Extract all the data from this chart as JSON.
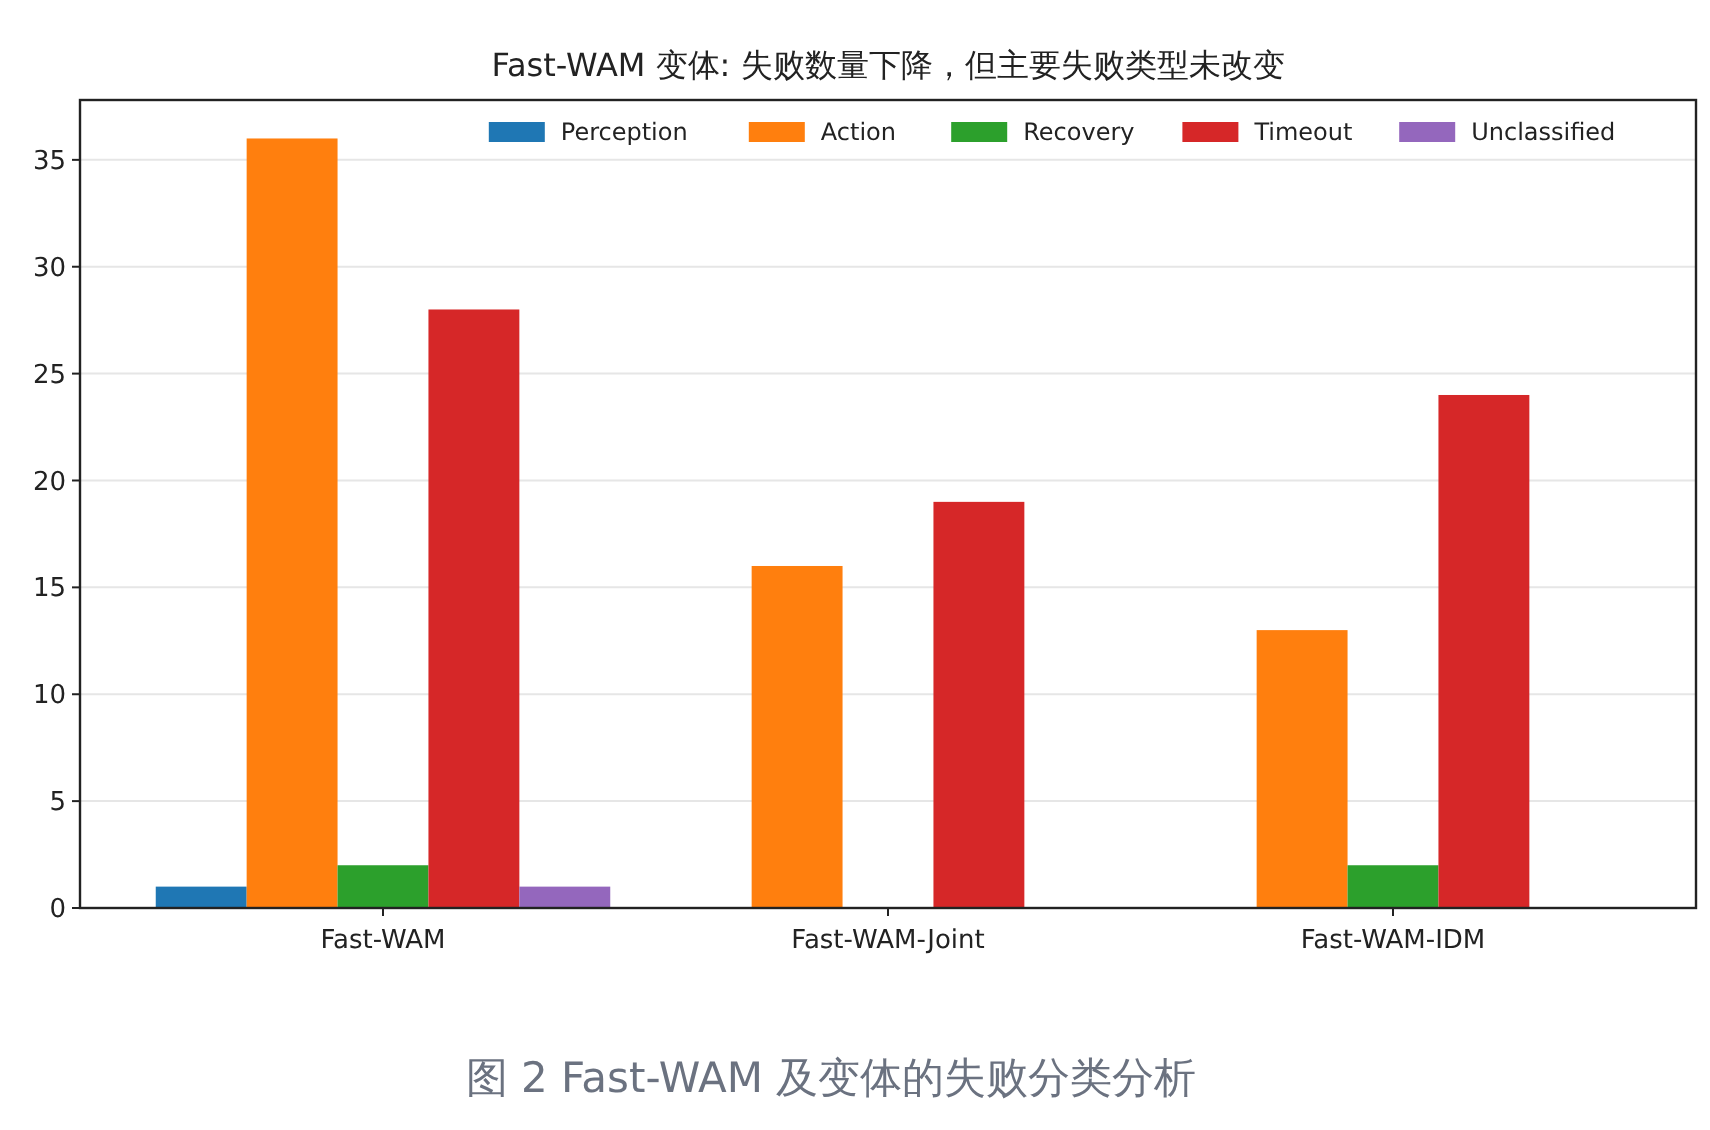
{
  "chart_data": {
    "type": "bar",
    "title": "Fast-WAM 变体: 失败数量下降，但主要失败类型未改变",
    "categories": [
      "Fast-WAM",
      "Fast-WAM-Joint",
      "Fast-WAM-IDM"
    ],
    "series": [
      {
        "name": "Perception",
        "color": "#1f77b4",
        "values": [
          1,
          0,
          0
        ]
      },
      {
        "name": "Action",
        "color": "#ff7f0e",
        "values": [
          36,
          16,
          13
        ]
      },
      {
        "name": "Recovery",
        "color": "#2ca02c",
        "values": [
          2,
          0,
          2
        ]
      },
      {
        "name": "Timeout",
        "color": "#d62728",
        "values": [
          28,
          19,
          24
        ]
      },
      {
        "name": "Unclassified",
        "color": "#9467bd",
        "values": [
          1,
          0,
          0
        ]
      }
    ],
    "ylim": [
      0,
      37.8
    ],
    "yticks": [
      0,
      5,
      10,
      15,
      20,
      25,
      30,
      35
    ],
    "grid": "y",
    "legend": "top right",
    "annotations": [
      "图 2 Fast-WAM 及变体的失败分类分析"
    ]
  }
}
